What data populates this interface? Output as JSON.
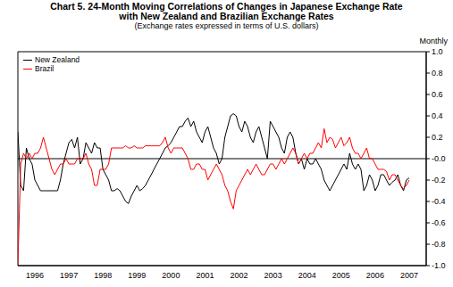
{
  "chart_data": {
    "type": "line",
    "title": "Chart 5. 24-Month Moving Correlations of Changes in Japanese Exchange Rate",
    "subtitle": "with New Zealand and Brazilian Exchange Rates",
    "caption": "(Exchange rates expressed in terms of U.S. dollars)",
    "y_label": "Monthly",
    "legend": "upper left",
    "grid": false,
    "xlim": [
      1996,
      2008
    ],
    "xticks": [
      {
        "value": 1996.5,
        "label": "1996"
      },
      {
        "value": 1997.5,
        "label": "1997"
      },
      {
        "value": 1998.5,
        "label": "1998"
      },
      {
        "value": 1999.5,
        "label": "1999"
      },
      {
        "value": 2000.5,
        "label": "2000"
      },
      {
        "value": 2001.5,
        "label": "2001"
      },
      {
        "value": 2002.5,
        "label": "2002"
      },
      {
        "value": 2003.5,
        "label": "2003"
      },
      {
        "value": 2004.5,
        "label": "2004"
      },
      {
        "value": 2005.5,
        "label": "2005"
      },
      {
        "value": 2006.5,
        "label": "2006"
      },
      {
        "value": 2007.5,
        "label": "2007"
      }
    ],
    "ylim": [
      -1.0,
      1.0
    ],
    "yticks": [
      {
        "value": 1.0,
        "label": "1.0"
      },
      {
        "value": 0.8,
        "label": "0.8"
      },
      {
        "value": 0.6,
        "label": "0.6"
      },
      {
        "value": 0.4,
        "label": "0.4"
      },
      {
        "value": 0.2,
        "label": "0.2"
      },
      {
        "value": 0.0,
        "label": "-0.0"
      },
      {
        "value": -0.2,
        "label": "-0.2"
      },
      {
        "value": -0.4,
        "label": "-0.4"
      },
      {
        "value": -0.6,
        "label": "-0.6"
      },
      {
        "value": -0.8,
        "label": "-0.8"
      },
      {
        "value": -1.0,
        "label": "-1.0"
      }
    ],
    "x": [
      1996,
      1996.083,
      1996.167,
      1996.25,
      1996.333,
      1996.417,
      1996.5,
      1996.583,
      1996.667,
      1996.75,
      1996.833,
      1996.917,
      1997,
      1997.083,
      1997.167,
      1997.25,
      1997.333,
      1997.417,
      1997.5,
      1997.583,
      1997.667,
      1997.75,
      1997.833,
      1997.917,
      1998,
      1998.083,
      1998.167,
      1998.25,
      1998.333,
      1998.417,
      1998.5,
      1998.583,
      1998.667,
      1998.75,
      1998.833,
      1998.917,
      1999,
      1999.083,
      1999.167,
      1999.25,
      1999.333,
      1999.417,
      1999.5,
      1999.583,
      1999.667,
      1999.75,
      1999.833,
      1999.917,
      2000,
      2000.083,
      2000.167,
      2000.25,
      2000.333,
      2000.417,
      2000.5,
      2000.583,
      2000.667,
      2000.75,
      2000.833,
      2000.917,
      2001,
      2001.083,
      2001.167,
      2001.25,
      2001.333,
      2001.417,
      2001.5,
      2001.583,
      2001.667,
      2001.75,
      2001.833,
      2001.917,
      2002,
      2002.083,
      2002.167,
      2002.25,
      2002.333,
      2002.417,
      2002.5,
      2002.583,
      2002.667,
      2002.75,
      2002.833,
      2002.917,
      2003,
      2003.083,
      2003.167,
      2003.25,
      2003.333,
      2003.417,
      2003.5,
      2003.583,
      2003.667,
      2003.75,
      2003.833,
      2003.917,
      2004,
      2004.083,
      2004.167,
      2004.25,
      2004.333,
      2004.417,
      2004.5,
      2004.583,
      2004.667,
      2004.75,
      2004.833,
      2004.917,
      2005,
      2005.083,
      2005.167,
      2005.25,
      2005.333,
      2005.417,
      2005.5,
      2005.583,
      2005.667,
      2005.75,
      2005.833,
      2005.917,
      2006,
      2006.083,
      2006.167,
      2006.25,
      2006.333,
      2006.417,
      2006.5,
      2006.583,
      2006.667,
      2006.75,
      2006.833,
      2006.917,
      2007,
      2007.083,
      2007.167,
      2007.25,
      2007.333,
      2007.417,
      2007.5
    ],
    "series": [
      {
        "name": "New Zealand",
        "color": "#000000",
        "values": [
          0.25,
          -0.25,
          -0.3,
          0.1,
          0.0,
          -0.05,
          -0.2,
          -0.25,
          -0.3,
          -0.3,
          -0.3,
          -0.3,
          -0.3,
          -0.3,
          -0.3,
          -0.2,
          -0.05,
          0.05,
          0.15,
          0.18,
          0.1,
          0.2,
          -0.05,
          0.0,
          0.15,
          0.1,
          0.05,
          0.15,
          0.1,
          0.1,
          -0.1,
          -0.15,
          -0.2,
          -0.3,
          -0.3,
          -0.28,
          -0.3,
          -0.35,
          -0.4,
          -0.42,
          -0.35,
          -0.3,
          -0.25,
          -0.3,
          -0.28,
          -0.25,
          -0.2,
          -0.15,
          -0.1,
          -0.05,
          0.0,
          0.05,
          0.1,
          0.12,
          0.15,
          0.2,
          0.25,
          0.3,
          0.3,
          0.35,
          0.38,
          0.3,
          0.35,
          0.25,
          0.2,
          0.15,
          0.25,
          0.3,
          0.2,
          0.1,
          0.05,
          -0.05,
          0.0,
          0.2,
          0.3,
          0.4,
          0.42,
          0.4,
          0.3,
          0.25,
          0.35,
          0.3,
          0.2,
          0.15,
          0.25,
          0.3,
          0.2,
          0.1,
          0.0,
          0.35,
          0.3,
          0.25,
          0.2,
          0.1,
          0.05,
          0.2,
          0.25,
          0.2,
          0.05,
          -0.05,
          0.0,
          -0.1,
          0.0,
          -0.05,
          -0.05,
          0.0,
          -0.05,
          -0.1,
          -0.2,
          -0.25,
          -0.3,
          -0.25,
          -0.2,
          -0.15,
          -0.1,
          -0.05,
          -0.1,
          0.05,
          -0.05,
          -0.1,
          -0.05,
          -0.1,
          -0.3,
          -0.25,
          -0.15,
          -0.2,
          -0.3,
          -0.25,
          -0.15,
          -0.15,
          -0.2,
          -0.25,
          -0.22,
          -0.2,
          -0.15,
          -0.25,
          -0.3,
          -0.2,
          -0.18
        ]
      },
      {
        "name": "Brazil",
        "color": "#ff0000",
        "values": [
          -1.0,
          -0.05,
          0.05,
          0.0,
          0.05,
          0.0,
          0.05,
          0.05,
          0.1,
          0.2,
          0.1,
          0.0,
          -0.1,
          -0.15,
          -0.1,
          -0.05,
          -0.05,
          0.0,
          -0.05,
          -0.05,
          -0.05,
          0.0,
          0.0,
          0.0,
          0.05,
          -0.05,
          -0.1,
          -0.25,
          -0.25,
          -0.1,
          -0.1,
          -0.1,
          -0.05,
          0.1,
          0.1,
          0.1,
          0.1,
          0.1,
          0.12,
          0.1,
          0.1,
          0.12,
          0.1,
          0.1,
          0.1,
          0.12,
          0.12,
          0.12,
          0.12,
          0.12,
          0.12,
          0.15,
          0.2,
          0.1,
          0.05,
          0.1,
          0.1,
          0.1,
          0.1,
          0.05,
          0.0,
          -0.1,
          -0.1,
          -0.05,
          -0.05,
          -0.1,
          -0.1,
          -0.2,
          -0.15,
          -0.1,
          -0.05,
          -0.1,
          -0.15,
          -0.25,
          -0.3,
          -0.4,
          -0.47,
          -0.3,
          -0.25,
          -0.2,
          -0.15,
          -0.1,
          -0.15,
          -0.1,
          -0.05,
          -0.1,
          -0.15,
          -0.15,
          -0.1,
          -0.05,
          -0.05,
          -0.1,
          -0.05,
          0.0,
          -0.05,
          0.0,
          0.05,
          0.1,
          0.05,
          -0.05,
          0.0,
          0.05,
          0.0,
          0.05,
          0.05,
          0.1,
          0.15,
          0.1,
          0.28,
          0.15,
          0.2,
          0.18,
          0.1,
          0.15,
          0.2,
          0.12,
          0.15,
          0.2,
          0.1,
          0.05,
          0.05,
          0.0,
          0.05,
          0.1,
          0.0,
          0.0,
          -0.05,
          -0.1,
          -0.1,
          -0.1,
          -0.12,
          -0.2,
          -0.15,
          -0.15,
          -0.2,
          -0.25,
          -0.28,
          -0.25,
          -0.2
        ]
      }
    ]
  }
}
